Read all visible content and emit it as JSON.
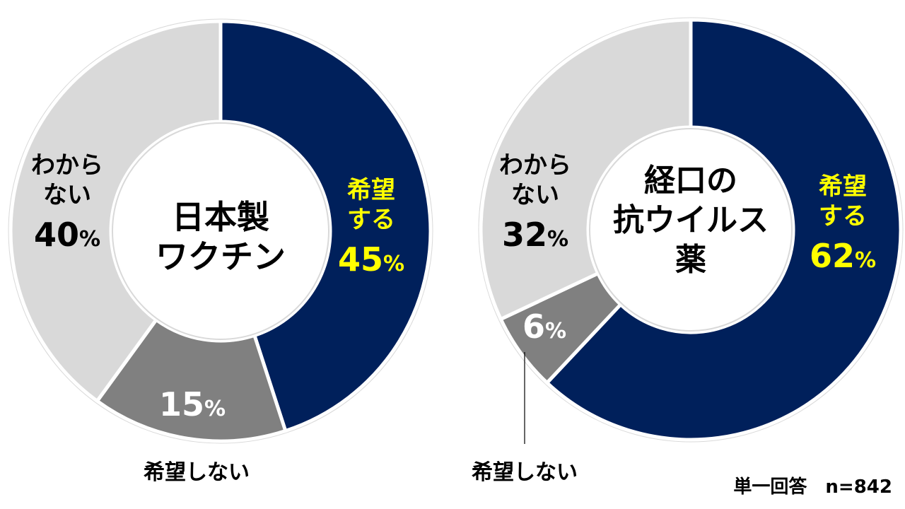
{
  "colors": {
    "yes": "#00205b",
    "no": "#808080",
    "unknown": "#d9d9d9",
    "yes_label": "#ffff00",
    "no_label": "#ffffff",
    "unknown_label": "#000000",
    "outline": "#d9d9d9"
  },
  "chart_data": [
    {
      "type": "pie",
      "title": "日本製ワクチン",
      "title_lines": [
        "日本製",
        "ワクチン"
      ],
      "slices": [
        {
          "key": "yes",
          "label_lines": [
            "希望",
            "する"
          ],
          "value": 45,
          "pct": "45",
          "unit": "%"
        },
        {
          "key": "no",
          "label_lines": [],
          "value": 15,
          "pct": "15",
          "unit": "%",
          "callout": "希望しない"
        },
        {
          "key": "unknown",
          "label_lines": [
            "わから",
            "ない"
          ],
          "value": 40,
          "pct": "40",
          "unit": "%"
        }
      ]
    },
    {
      "type": "pie",
      "title": "経口の抗ウイルス薬",
      "title_lines": [
        "経口の",
        "抗ウイルス",
        "薬"
      ],
      "slices": [
        {
          "key": "yes",
          "label_lines": [
            "希望",
            "する"
          ],
          "value": 62,
          "pct": "62",
          "unit": "%"
        },
        {
          "key": "no",
          "label_lines": [],
          "value": 6,
          "pct": "6",
          "unit": "%",
          "callout": "希望しない"
        },
        {
          "key": "unknown",
          "label_lines": [
            "わから",
            "ない"
          ],
          "value": 32,
          "pct": "32",
          "unit": "%"
        }
      ]
    }
  ],
  "footnote": "単一回答　n=842"
}
